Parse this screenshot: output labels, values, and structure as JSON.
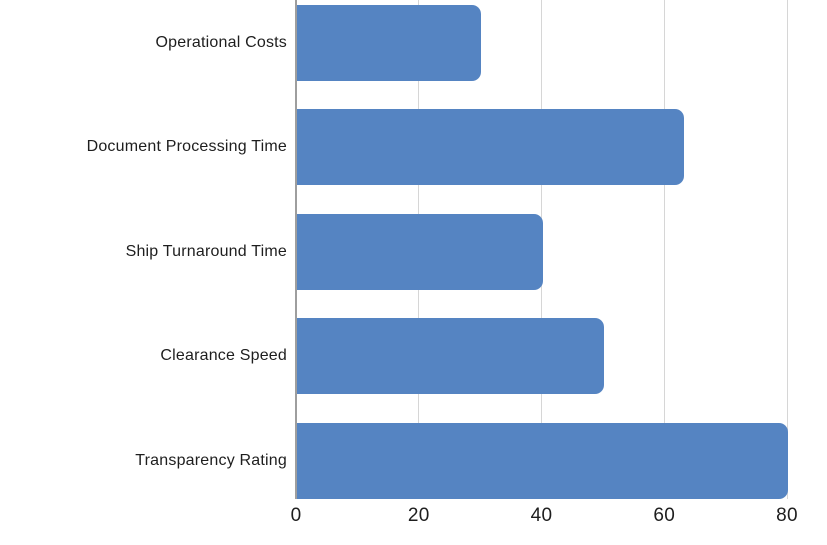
{
  "chart_data": {
    "type": "bar",
    "orientation": "horizontal",
    "title": "",
    "categories": [
      "Operational Costs",
      "Document Processing Time",
      "Ship Turnaround Time",
      "Clearance Speed",
      "Transparency Rating"
    ],
    "values": [
      30,
      63,
      40,
      50,
      80
    ],
    "xlabel": "",
    "ylabel": "",
    "xlim": [
      0,
      80
    ],
    "x_ticks": [
      0,
      20,
      40,
      60,
      80
    ],
    "grid": true,
    "legend": false,
    "colors": {
      "bar": "#5584C2",
      "gridline": "#D6D6D6",
      "axis_line": "#9E9E9E",
      "text": "#1E1E1E"
    }
  }
}
